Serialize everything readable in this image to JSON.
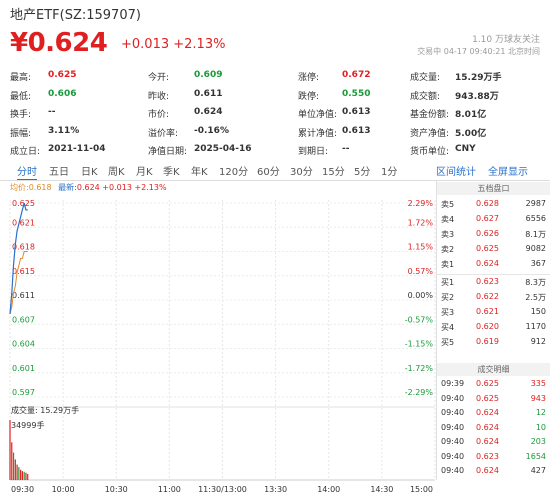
{
  "header": {
    "title": "地产ETF(SZ:159707)",
    "price": "¥0.624",
    "change": "+0.013",
    "change_pct": "+2.13%",
    "watch_count": "1.10 万球友关注",
    "trade_time": "交易中 04-17 09:40:21 北京时间"
  },
  "stats": [
    [
      {
        "label": "最高:",
        "value": "0.625",
        "color": "#e02020"
      },
      {
        "label": "今开:",
        "value": "0.609",
        "color": "#1a9a3a"
      },
      {
        "label": "涨停:",
        "value": "0.672",
        "color": "#e02020"
      },
      {
        "label": "成交量:",
        "value": "15.29万手",
        "color": "#333333"
      }
    ],
    [
      {
        "label": "最低:",
        "value": "0.606",
        "color": "#1a9a3a"
      },
      {
        "label": "昨收:",
        "value": "0.611",
        "color": "#333333"
      },
      {
        "label": "跌停:",
        "value": "0.550",
        "color": "#1a9a3a"
      },
      {
        "label": "成交额:",
        "value": "943.88万",
        "color": "#333333"
      }
    ],
    [
      {
        "label": "换手:",
        "value": "--",
        "color": "#333333"
      },
      {
        "label": "市价:",
        "value": "0.624",
        "color": "#333333"
      },
      {
        "label": "单位净值:",
        "value": "0.613",
        "color": "#333333"
      },
      {
        "label": "基金份额:",
        "value": "8.01亿",
        "color": "#333333"
      }
    ],
    [
      {
        "label": "振幅:",
        "value": "3.11%",
        "color": "#333333"
      },
      {
        "label": "溢价率:",
        "value": "-0.16%",
        "color": "#333333"
      },
      {
        "label": "累计净值:",
        "value": "0.613",
        "color": "#333333"
      },
      {
        "label": "资产净值:",
        "value": "5.00亿",
        "color": "#333333"
      }
    ],
    [
      {
        "label": "成立日:",
        "value": "2021-11-04",
        "color": "#333333"
      },
      {
        "label": "净值日期:",
        "value": "2025-04-16",
        "color": "#333333"
      },
      {
        "label": "到期日:",
        "value": "--",
        "color": "#333333"
      },
      {
        "label": "货币单位:",
        "value": "CNY",
        "color": "#333333"
      }
    ]
  ],
  "tabs": [
    "分时",
    "五日",
    "日K",
    "周K",
    "月K",
    "季K",
    "年K",
    "120分",
    "60分",
    "30分",
    "15分",
    "5分",
    "1分"
  ],
  "links": {
    "interval_stats": "区间统计",
    "fullscreen": "全屏显示"
  },
  "chart_legend": {
    "avg_label": "均价:",
    "avg_value": "0.618",
    "latest_label": "最新:",
    "latest_value": "0.624 +0.013 +2.13%"
  },
  "chart_data": {
    "type": "line",
    "price_ticks": [
      "0.625",
      "0.621",
      "0.618",
      "0.615",
      "0.611",
      "0.607",
      "0.604",
      "0.601",
      "0.597"
    ],
    "pct_ticks": [
      "2.29%",
      "1.72%",
      "1.15%",
      "0.57%",
      "0.00%",
      "-0.57%",
      "-1.15%",
      "-1.72%",
      "-2.29%"
    ],
    "ylim": [
      0.597,
      0.625
    ],
    "base": 0.611,
    "x_labels": [
      "09:30",
      "10:00",
      "10:30",
      "11:00",
      "11:30/13:00",
      "13:30",
      "14:00",
      "14:30",
      "15:00"
    ],
    "price_series": [
      {
        "minute": 0,
        "value": 0.609
      },
      {
        "minute": 1,
        "value": 0.612
      },
      {
        "minute": 2,
        "value": 0.616
      },
      {
        "minute": 3,
        "value": 0.619
      },
      {
        "minute": 4,
        "value": 0.621
      },
      {
        "minute": 5,
        "value": 0.622
      },
      {
        "minute": 6,
        "value": 0.623
      },
      {
        "minute": 7,
        "value": 0.624
      },
      {
        "minute": 8,
        "value": 0.625
      },
      {
        "minute": 9,
        "value": 0.624
      },
      {
        "minute": 10,
        "value": 0.624
      }
    ],
    "avg_series": [
      {
        "minute": 0,
        "value": 0.609
      },
      {
        "minute": 1,
        "value": 0.61
      },
      {
        "minute": 2,
        "value": 0.612
      },
      {
        "minute": 3,
        "value": 0.613
      },
      {
        "minute": 4,
        "value": 0.615
      },
      {
        "minute": 5,
        "value": 0.616
      },
      {
        "minute": 6,
        "value": 0.617
      },
      {
        "minute": 7,
        "value": 0.617
      },
      {
        "minute": 8,
        "value": 0.618
      },
      {
        "minute": 9,
        "value": 0.618
      },
      {
        "minute": 10,
        "value": 0.618
      }
    ],
    "volume_label": "成交量: 15.29万手",
    "volume_max_label": "34999手",
    "volume_max": 34999,
    "volume_series": [
      34999,
      22000,
      16000,
      12000,
      9000,
      7500,
      6000,
      5200,
      4800,
      4200,
      3500
    ]
  },
  "order_book": {
    "title": "五档盘口",
    "asks": [
      {
        "label": "卖5",
        "price": "0.628",
        "vol": "2987"
      },
      {
        "label": "卖4",
        "price": "0.627",
        "vol": "6556"
      },
      {
        "label": "卖3",
        "price": "0.626",
        "vol": "8.1万"
      },
      {
        "label": "卖2",
        "price": "0.625",
        "vol": "9082"
      },
      {
        "label": "卖1",
        "price": "0.624",
        "vol": "367"
      }
    ],
    "bids": [
      {
        "label": "买1",
        "price": "0.623",
        "vol": "8.3万"
      },
      {
        "label": "买2",
        "price": "0.622",
        "vol": "2.5万"
      },
      {
        "label": "买3",
        "price": "0.621",
        "vol": "150"
      },
      {
        "label": "买4",
        "price": "0.620",
        "vol": "1170"
      },
      {
        "label": "买5",
        "price": "0.619",
        "vol": "912"
      }
    ],
    "trades_title": "成交明细",
    "trades": [
      {
        "time": "09:39",
        "price": "0.625",
        "vol": "335",
        "dir": "#e02020"
      },
      {
        "time": "09:40",
        "price": "0.625",
        "vol": "943",
        "dir": "#e02020"
      },
      {
        "time": "09:40",
        "price": "0.624",
        "vol": "12",
        "dir": "#1a9a3a"
      },
      {
        "time": "09:40",
        "price": "0.624",
        "vol": "10",
        "dir": "#1a9a3a"
      },
      {
        "time": "09:40",
        "price": "0.624",
        "vol": "203",
        "dir": "#1a9a3a"
      },
      {
        "time": "09:40",
        "price": "0.623",
        "vol": "1654",
        "dir": "#1a9a3a"
      },
      {
        "time": "09:40",
        "price": "0.624",
        "vol": "427",
        "dir": "#333333"
      }
    ]
  }
}
